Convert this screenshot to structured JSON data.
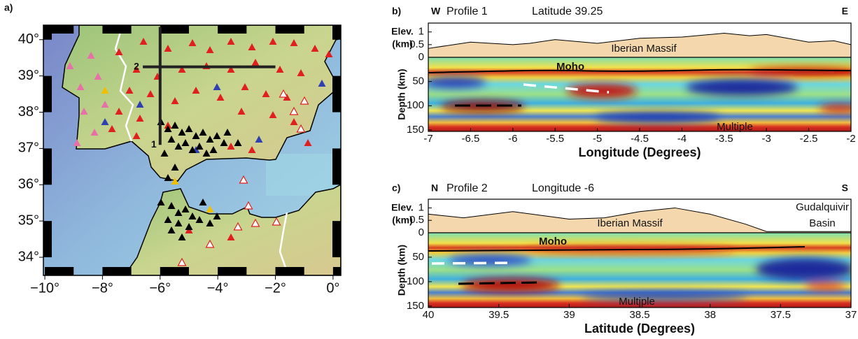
{
  "chart_data": [
    {
      "type": "map",
      "panel": "a)",
      "xlim": [
        -10.05,
        0.27
      ],
      "ylim": [
        33.5,
        40.4
      ],
      "xticks": [
        {
          "value": -10,
          "label": "−10°"
        },
        {
          "value": -8,
          "label": "−8°"
        },
        {
          "value": -6,
          "label": "−6°"
        },
        {
          "value": -4,
          "label": "−4°"
        },
        {
          "value": -2,
          "label": "−2°"
        },
        {
          "value": 0,
          "label": "0°"
        }
      ],
      "yticks": [
        {
          "value": 34,
          "label": "34°"
        },
        {
          "value": 35,
          "label": "35°"
        },
        {
          "value": 36,
          "label": "36°"
        },
        {
          "value": 37,
          "label": "37°"
        },
        {
          "value": 38,
          "label": "38°"
        },
        {
          "value": 39,
          "label": "39°"
        },
        {
          "value": 40,
          "label": "40°"
        }
      ],
      "lines": [
        {
          "label": "1",
          "x": [
            -6,
            -6
          ],
          "y": [
            37.1,
            40.35
          ]
        },
        {
          "label": "2",
          "x": [
            -6.6,
            -2
          ],
          "y": [
            39.25,
            39.25
          ]
        }
      ]
    },
    {
      "type": "section",
      "panel": "b)",
      "left": "W",
      "right": "E",
      "title": "Profile 1",
      "subtitle": "Latitude 39.25",
      "xlabel": "Longitude (Degrees)",
      "ylabel": "Depth (km)",
      "elev_label": [
        "Elev.",
        "(km)"
      ],
      "xlim": [
        -7,
        -2
      ],
      "xticks": [
        -7,
        -6.5,
        -6,
        -5.5,
        -5,
        -4.5,
        -4,
        -3.5,
        -3,
        -2.5,
        -2
      ],
      "ylim": [
        0,
        153
      ],
      "yticks": [
        0,
        50,
        100,
        150
      ],
      "y_inverted": true,
      "elev_lim": [
        0,
        1.35
      ],
      "elev_ticks": [
        0.5,
        1
      ],
      "annotations": [
        "Iberian Massif",
        "Moho",
        "Multiple"
      ],
      "elevation": {
        "x": [
          -7,
          -6.5,
          -6,
          -5.8,
          -5.5,
          -5,
          -4.5,
          -4,
          -3.5,
          -3.2,
          -3,
          -2.5,
          -2.2,
          -2
        ],
        "values": [
          0.35,
          0.6,
          0.5,
          0.55,
          0.7,
          0.55,
          0.75,
          0.8,
          0.95,
          0.85,
          0.9,
          0.6,
          0.65,
          0.5
        ]
      }
    },
    {
      "type": "section",
      "panel": "c)",
      "left": "N",
      "right": "S",
      "title": "Profile 2",
      "subtitle": "Longitude -6",
      "xlabel": "Latitude (Degrees)",
      "ylabel": "Depth (km)",
      "elev_label": [
        "Elev.",
        "(km)"
      ],
      "xlim": [
        40,
        37
      ],
      "xticks": [
        40,
        39.5,
        39,
        38.5,
        38,
        37.5,
        37
      ],
      "ylim": [
        0,
        153
      ],
      "yticks": [
        0,
        50,
        100,
        150
      ],
      "y_inverted": true,
      "elev_lim": [
        0,
        1.35
      ],
      "elev_ticks": [
        0.5,
        1
      ],
      "annotations": [
        "Iberian Massif",
        "Gudalquivir",
        "Basin",
        "Moho",
        "Multiple"
      ],
      "elevation": {
        "x": [
          40,
          39.75,
          39.4,
          39.2,
          39,
          38.75,
          38.5,
          38.25,
          38,
          37.75,
          37.6,
          37
        ],
        "values": [
          0.75,
          0.6,
          0.85,
          0.7,
          0.55,
          0.6,
          0.85,
          1.0,
          0.75,
          0.35,
          0.05,
          0.05
        ]
      }
    }
  ]
}
